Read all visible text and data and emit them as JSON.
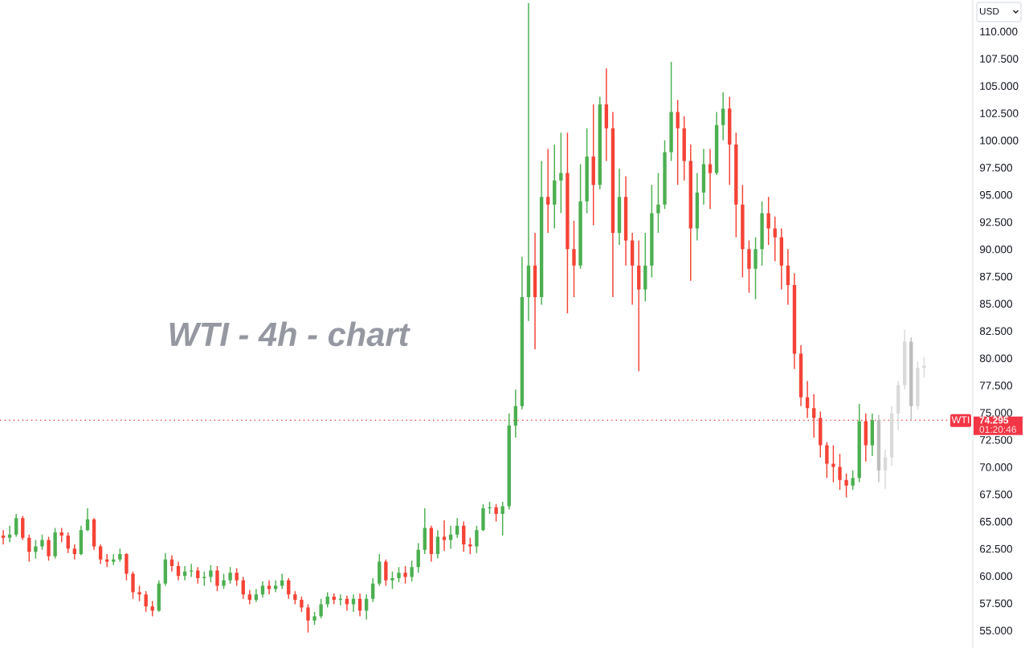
{
  "chart_data": {
    "type": "candlestick",
    "title": "WTI - 4h - chart",
    "categories": [
      null,
      null,
      null,
      null,
      null,
      null,
      null,
      null,
      null,
      null,
      null,
      null,
      null,
      null,
      null,
      null,
      null,
      null,
      null,
      null,
      null,
      null,
      null,
      null,
      null,
      null,
      null,
      null,
      null,
      null,
      null,
      null,
      null,
      null,
      null,
      null,
      null,
      null,
      null,
      null,
      null,
      null,
      null,
      null,
      null,
      null,
      null,
      null,
      null,
      null,
      null,
      null,
      null,
      null,
      null,
      null,
      null,
      null,
      null,
      null,
      null,
      null,
      null,
      null,
      null,
      null,
      null,
      null,
      null,
      null,
      null,
      null,
      null,
      null,
      null,
      null,
      null,
      null,
      null,
      null,
      null,
      null,
      null,
      null,
      null,
      null,
      null,
      null,
      null,
      null,
      null,
      null,
      null,
      null,
      null,
      null,
      null,
      null,
      null,
      null,
      null,
      null,
      null,
      null,
      null,
      null,
      null,
      null,
      null,
      null,
      null,
      null,
      null,
      null,
      null,
      null,
      null,
      null,
      null,
      null,
      null,
      null,
      null,
      null,
      null,
      null,
      null,
      null,
      null,
      null,
      null,
      null,
      null,
      null,
      null,
      null,
      null,
      null,
      null,
      null,
      null,
      null,
      null,
      null,
      null,
      null,
      null,
      null,
      null,
      null
    ],
    "series": [
      {
        "ohlc": [
          [
            63.7,
            64.2,
            62.9,
            63.5
          ],
          [
            63.5,
            64.6,
            63.1,
            63.8
          ],
          [
            63.8,
            65.7,
            63.6,
            65.3
          ],
          [
            65.3,
            65.5,
            63.3,
            63.5
          ],
          [
            63.5,
            63.8,
            61.3,
            62.2
          ],
          [
            62.2,
            63.3,
            61.6,
            62.7
          ],
          [
            62.7,
            63.8,
            62.4,
            63.3
          ],
          [
            63.3,
            63.6,
            61.4,
            61.8
          ],
          [
            61.8,
            64.4,
            61.6,
            64.0
          ],
          [
            64.0,
            64.4,
            63.1,
            63.7
          ],
          [
            63.7,
            64.0,
            62.1,
            62.5
          ],
          [
            62.5,
            62.9,
            61.5,
            62.0
          ],
          [
            62.0,
            64.6,
            61.9,
            64.2
          ],
          [
            64.2,
            66.2,
            64.1,
            65.2
          ],
          [
            65.2,
            65.3,
            62.4,
            62.7
          ],
          [
            62.7,
            62.9,
            61.1,
            61.5
          ],
          [
            61.5,
            62.0,
            60.8,
            61.3
          ],
          [
            61.3,
            62.0,
            61.0,
            61.5
          ],
          [
            61.5,
            62.5,
            61.3,
            62.0
          ],
          [
            62.0,
            62.1,
            59.6,
            60.2
          ],
          [
            60.2,
            60.4,
            57.9,
            58.5
          ],
          [
            58.5,
            59.1,
            57.7,
            58.3
          ],
          [
            58.3,
            58.6,
            56.7,
            57.2
          ],
          [
            57.2,
            57.7,
            56.3,
            56.8
          ],
          [
            56.8,
            59.6,
            56.7,
            59.3
          ],
          [
            59.3,
            62.1,
            59.1,
            61.5
          ],
          [
            61.5,
            61.9,
            60.4,
            60.9
          ],
          [
            60.9,
            61.3,
            59.6,
            60.0
          ],
          [
            60.0,
            60.9,
            59.6,
            60.4
          ],
          [
            60.4,
            61.1,
            59.9,
            60.5
          ],
          [
            60.5,
            60.8,
            59.3,
            59.8
          ],
          [
            59.8,
            60.4,
            59.1,
            59.9
          ],
          [
            59.9,
            61.0,
            59.4,
            60.5
          ],
          [
            60.5,
            60.9,
            58.6,
            59.1
          ],
          [
            59.1,
            60.2,
            58.8,
            59.6
          ],
          [
            59.6,
            60.8,
            59.3,
            60.3
          ],
          [
            60.3,
            60.7,
            59.1,
            59.6
          ],
          [
            59.6,
            59.9,
            57.9,
            58.3
          ],
          [
            58.3,
            58.7,
            57.4,
            57.8
          ],
          [
            57.8,
            58.8,
            57.6,
            58.3
          ],
          [
            58.3,
            59.5,
            58.0,
            59.1
          ],
          [
            59.1,
            59.6,
            58.3,
            58.8
          ],
          [
            58.8,
            59.6,
            58.5,
            59.1
          ],
          [
            59.1,
            60.2,
            58.8,
            59.6
          ],
          [
            59.6,
            59.8,
            57.9,
            58.3
          ],
          [
            58.3,
            58.6,
            57.4,
            57.8
          ],
          [
            57.8,
            58.1,
            56.7,
            57.1
          ],
          [
            57.1,
            57.4,
            54.8,
            55.9
          ],
          [
            55.9,
            56.7,
            55.5,
            56.3
          ],
          [
            56.3,
            57.9,
            56.1,
            57.4
          ],
          [
            57.4,
            58.5,
            57.1,
            58.1
          ],
          [
            58.1,
            58.4,
            57.4,
            57.8
          ],
          [
            57.8,
            58.3,
            57.3,
            57.9
          ],
          [
            57.9,
            58.2,
            56.8,
            57.4
          ],
          [
            57.4,
            58.3,
            56.7,
            57.9
          ],
          [
            57.9,
            58.4,
            56.3,
            56.8
          ],
          [
            56.8,
            58.3,
            56.0,
            57.9
          ],
          [
            57.9,
            59.8,
            57.6,
            59.3
          ],
          [
            59.3,
            62.0,
            59.1,
            61.3
          ],
          [
            61.3,
            61.5,
            59.1,
            59.6
          ],
          [
            59.6,
            60.4,
            58.8,
            59.8
          ],
          [
            59.8,
            60.8,
            59.4,
            60.3
          ],
          [
            60.3,
            60.9,
            59.3,
            59.9
          ],
          [
            59.9,
            61.4,
            59.5,
            60.8
          ],
          [
            60.8,
            63.0,
            60.3,
            62.4
          ],
          [
            62.4,
            66.2,
            62.0,
            64.4
          ],
          [
            64.4,
            64.6,
            61.3,
            62.0
          ],
          [
            62.0,
            64.2,
            61.6,
            63.6
          ],
          [
            63.6,
            65.1,
            62.3,
            63.3
          ],
          [
            63.3,
            64.6,
            62.5,
            63.8
          ],
          [
            63.8,
            65.3,
            63.5,
            64.6
          ],
          [
            64.6,
            65.0,
            62.2,
            62.9
          ],
          [
            62.9,
            63.5,
            62.0,
            62.7
          ],
          [
            62.7,
            64.6,
            62.1,
            64.2
          ],
          [
            64.2,
            66.6,
            64.1,
            66.2
          ],
          [
            66.2,
            66.8,
            65.7,
            66.3
          ],
          [
            66.3,
            66.6,
            65.0,
            65.7
          ],
          [
            65.7,
            66.8,
            63.7,
            66.4
          ],
          [
            66.4,
            74.9,
            66.1,
            73.8
          ],
          [
            73.8,
            77.1,
            72.7,
            75.6
          ],
          [
            75.6,
            89.3,
            75.3,
            85.6
          ],
          [
            85.6,
            112.6,
            83.4,
            88.5
          ],
          [
            88.5,
            91.5,
            80.8,
            85.6
          ],
          [
            85.6,
            98.1,
            84.9,
            94.8
          ],
          [
            94.8,
            99.2,
            91.5,
            94.1
          ],
          [
            94.1,
            99.6,
            91.9,
            96.3
          ],
          [
            96.3,
            100.7,
            93.3,
            97.0
          ],
          [
            97.0,
            100.7,
            84.1,
            90.0
          ],
          [
            90.0,
            92.6,
            85.6,
            88.5
          ],
          [
            88.5,
            97.8,
            88.2,
            94.4
          ],
          [
            94.4,
            101.1,
            93.3,
            98.5
          ],
          [
            98.5,
            103.3,
            92.2,
            95.9
          ],
          [
            95.9,
            104.0,
            95.5,
            103.3
          ],
          [
            103.3,
            106.6,
            98.1,
            101.1
          ],
          [
            101.1,
            102.6,
            85.6,
            91.5
          ],
          [
            91.5,
            97.4,
            90.4,
            94.8
          ],
          [
            94.8,
            96.7,
            88.5,
            90.8
          ],
          [
            90.8,
            91.5,
            84.9,
            88.5
          ],
          [
            88.5,
            90.8,
            78.8,
            86.3
          ],
          [
            86.3,
            91.5,
            85.2,
            88.5
          ],
          [
            88.5,
            95.9,
            87.4,
            93.3
          ],
          [
            93.3,
            97.0,
            91.5,
            94.1
          ],
          [
            94.1,
            100.0,
            93.7,
            98.9
          ],
          [
            98.9,
            107.2,
            98.1,
            102.6
          ],
          [
            102.6,
            103.7,
            95.9,
            101.1
          ],
          [
            101.1,
            102.2,
            96.3,
            98.1
          ],
          [
            98.1,
            99.6,
            87.1,
            91.9
          ],
          [
            91.9,
            97.0,
            90.8,
            95.2
          ],
          [
            95.2,
            99.2,
            94.1,
            97.8
          ],
          [
            97.8,
            99.2,
            93.7,
            97.0
          ],
          [
            97.0,
            102.6,
            96.8,
            101.4
          ],
          [
            101.4,
            104.4,
            100.0,
            102.9
          ],
          [
            102.9,
            104.0,
            95.9,
            99.6
          ],
          [
            99.6,
            100.7,
            91.1,
            94.1
          ],
          [
            94.1,
            95.9,
            87.4,
            90.0
          ],
          [
            90.0,
            90.8,
            86.0,
            88.2
          ],
          [
            88.2,
            91.1,
            85.4,
            90.0
          ],
          [
            90.0,
            94.4,
            88.5,
            93.3
          ],
          [
            93.3,
            94.8,
            90.4,
            91.9
          ],
          [
            91.9,
            93.0,
            88.9,
            91.1
          ],
          [
            91.1,
            91.9,
            86.3,
            88.5
          ],
          [
            88.5,
            90.0,
            84.9,
            86.7
          ],
          [
            86.7,
            87.8,
            79.0,
            80.4
          ],
          [
            80.4,
            81.2,
            75.6,
            76.4
          ],
          [
            76.4,
            77.9,
            74.5,
            75.4
          ],
          [
            75.4,
            76.7,
            72.7,
            74.5
          ],
          [
            74.5,
            75.1,
            70.9,
            72.0
          ],
          [
            72.0,
            72.3,
            69.0,
            70.3
          ],
          [
            70.3,
            72.0,
            68.6,
            70.0
          ],
          [
            70.0,
            71.2,
            67.9,
            68.8
          ],
          [
            68.8,
            69.4,
            67.2,
            68.3
          ],
          [
            68.3,
            69.7,
            67.9,
            69.0
          ],
          [
            69.0,
            75.8,
            68.6,
            74.2
          ],
          [
            74.2,
            74.9,
            70.5,
            72.0
          ],
          [
            72.0,
            74.9,
            71.0,
            74.3
          ],
          null,
          null,
          null,
          null,
          null,
          null,
          null,
          null,
          null,
          null,
          null,
          null,
          null,
          null,
          null
        ],
        "colors": [
          "#f44336",
          "#4caf50",
          "#4caf50",
          "#f44336",
          "#f44336",
          "#4caf50",
          "#4caf50",
          "#f44336",
          "#4caf50",
          "#f44336",
          "#f44336",
          "#f44336",
          "#4caf50",
          "#4caf50",
          "#f44336",
          "#f44336",
          "#f44336",
          "#4caf50",
          "#4caf50",
          "#f44336",
          "#f44336",
          "#f44336",
          "#f44336",
          "#f44336",
          "#4caf50",
          "#4caf50",
          "#f44336",
          "#f44336",
          "#4caf50",
          "#4caf50",
          "#f44336",
          "#4caf50",
          "#4caf50",
          "#f44336",
          "#4caf50",
          "#4caf50",
          "#f44336",
          "#f44336",
          "#f44336",
          "#4caf50",
          "#4caf50",
          "#f44336",
          "#4caf50",
          "#4caf50",
          "#f44336",
          "#f44336",
          "#f44336",
          "#f44336",
          "#4caf50",
          "#4caf50",
          "#4caf50",
          "#f44336",
          "#4caf50",
          "#f44336",
          "#4caf50",
          "#f44336",
          "#4caf50",
          "#4caf50",
          "#4caf50",
          "#f44336",
          "#4caf50",
          "#4caf50",
          "#f44336",
          "#4caf50",
          "#4caf50",
          "#4caf50",
          "#f44336",
          "#4caf50",
          "#f44336",
          "#4caf50",
          "#4caf50",
          "#f44336",
          "#f44336",
          "#4caf50",
          "#4caf50",
          "#4caf50",
          "#f44336",
          "#4caf50",
          "#4caf50",
          "#4caf50",
          "#4caf50",
          "#4caf50",
          "#f44336",
          "#4caf50",
          "#f44336",
          "#4caf50",
          "#4caf50",
          "#f44336",
          "#f44336",
          "#4caf50",
          "#4caf50",
          "#f44336",
          "#4caf50",
          "#f44336",
          "#f44336",
          "#4caf50",
          "#f44336",
          "#f44336",
          "#f44336",
          "#4caf50",
          "#4caf50",
          "#4caf50",
          "#4caf50",
          "#4caf50",
          "#f44336",
          "#f44336",
          "#f44336",
          "#4caf50",
          "#4caf50",
          "#f44336",
          "#4caf50",
          "#4caf50",
          "#f44336",
          "#f44336",
          "#f44336",
          "#f44336",
          "#4caf50",
          "#4caf50",
          "#f44336",
          "#f44336",
          "#f44336",
          "#f44336",
          "#f44336",
          "#f44336",
          "#f44336",
          "#f44336",
          "#f44336",
          "#f44336",
          "#f44336",
          "#f44336",
          "#f44336",
          "#4caf50",
          "#4caf50",
          "#f44336",
          "#4caf50",
          null,
          null,
          null,
          null,
          null,
          null,
          null,
          null,
          null,
          null,
          null,
          null,
          null,
          null,
          null
        ]
      },
      {
        "ohlc": [
          null,
          null,
          null,
          null,
          null,
          null,
          null,
          null,
          null,
          null,
          null,
          null,
          null,
          null,
          null,
          null,
          null,
          null,
          null,
          null,
          null,
          null,
          null,
          null,
          null,
          null,
          null,
          null,
          null,
          null,
          null,
          null,
          null,
          null,
          null,
          null,
          null,
          null,
          null,
          null,
          null,
          null,
          null,
          null,
          null,
          null,
          null,
          null,
          null,
          null,
          null,
          null,
          null,
          null,
          null,
          null,
          null,
          null,
          null,
          null,
          null,
          null,
          null,
          null,
          null,
          null,
          null,
          null,
          null,
          null,
          null,
          null,
          null,
          null,
          null,
          null,
          null,
          null,
          null,
          null,
          null,
          null,
          null,
          null,
          null,
          null,
          null,
          null,
          null,
          null,
          null,
          null,
          null,
          null,
          null,
          null,
          null,
          null,
          null,
          null,
          null,
          null,
          null,
          null,
          null,
          null,
          null,
          null,
          null,
          null,
          null,
          null,
          null,
          null,
          null,
          null,
          null,
          null,
          null,
          null,
          null,
          null,
          null,
          null,
          null,
          null,
          null,
          null,
          null,
          null,
          null,
          null,
          null,
          null,
          null,
          [
            74.3,
            74.8,
            68.6,
            69.7
          ],
          [
            69.7,
            71.6,
            68.0,
            70.9
          ],
          [
            70.9,
            75.6,
            70.1,
            74.9
          ],
          [
            74.9,
            77.9,
            73.4,
            77.5
          ],
          [
            77.5,
            82.6,
            77.1,
            81.5
          ],
          [
            81.5,
            81.9,
            74.3,
            75.6
          ],
          [
            75.6,
            79.7,
            75.3,
            79.1
          ],
          [
            79.1,
            80.1,
            78.2,
            79.3
          ],
          null,
          null,
          null,
          null,
          null,
          null,
          null
        ],
        "colors": [
          null,
          null,
          null,
          null,
          null,
          null,
          null,
          null,
          null,
          null,
          null,
          null,
          null,
          null,
          null,
          null,
          null,
          null,
          null,
          null,
          null,
          null,
          null,
          null,
          null,
          null,
          null,
          null,
          null,
          null,
          null,
          null,
          null,
          null,
          null,
          null,
          null,
          null,
          null,
          null,
          null,
          null,
          null,
          null,
          null,
          null,
          null,
          null,
          null,
          null,
          null,
          null,
          null,
          null,
          null,
          null,
          null,
          null,
          null,
          null,
          null,
          null,
          null,
          null,
          null,
          null,
          null,
          null,
          null,
          null,
          null,
          null,
          null,
          null,
          null,
          null,
          null,
          null,
          null,
          null,
          null,
          null,
          null,
          null,
          null,
          null,
          null,
          null,
          null,
          null,
          null,
          null,
          null,
          null,
          null,
          null,
          null,
          null,
          null,
          null,
          null,
          null,
          null,
          null,
          null,
          null,
          null,
          null,
          null,
          null,
          null,
          null,
          null,
          null,
          null,
          null,
          null,
          null,
          null,
          null,
          null,
          null,
          null,
          null,
          null,
          null,
          null,
          null,
          null,
          null,
          null,
          null,
          null,
          null,
          null,
          "#bdbdbd",
          "#dadada",
          "#dadada",
          "#dadada",
          "#dadada",
          "#bdbdbd",
          "#dadada",
          "#dadada",
          null,
          null,
          null,
          null,
          null,
          null,
          null
        ]
      }
    ],
    "ylim": [
      53.38,
      112.88
    ],
    "yticks": [
      {
        "value": 55,
        "label": "55.000"
      },
      {
        "value": 57.5,
        "label": "57.500"
      },
      {
        "value": 60,
        "label": "60.000"
      },
      {
        "value": 62.5,
        "label": "62.500"
      },
      {
        "value": 65,
        "label": "65.000"
      },
      {
        "value": 67.5,
        "label": "67.500"
      },
      {
        "value": 70,
        "label": "70.000"
      },
      {
        "value": 72.5,
        "label": "72.500"
      },
      {
        "value": 75,
        "label": "75.000"
      },
      {
        "value": 77.5,
        "label": "77.500"
      },
      {
        "value": 80,
        "label": "80.000"
      },
      {
        "value": 82.5,
        "label": "82.500"
      },
      {
        "value": 85,
        "label": "85.000"
      },
      {
        "value": 87.5,
        "label": "87.500"
      },
      {
        "value": 90,
        "label": "90.000"
      },
      {
        "value": 92.5,
        "label": "92.500"
      },
      {
        "value": 95,
        "label": "95.000"
      },
      {
        "value": 97.5,
        "label": "97.500"
      },
      {
        "value": 100,
        "label": "100.000"
      },
      {
        "value": 102.5,
        "label": "102.500"
      },
      {
        "value": 105,
        "label": "105.000"
      },
      {
        "value": 107.5,
        "label": "107.500"
      },
      {
        "value": 110,
        "label": "110.000"
      }
    ],
    "tick_labels": "y",
    "ref_lines": [
      {
        "axis": "y",
        "value": 74.295,
        "label": "74.295",
        "color": "#f23645",
        "line_style": "dotted"
      }
    ],
    "annotations": [
      "USD",
      {
        "text": "WTI",
        "y": 74.295
      },
      "01:20:46"
    ]
  }
}
